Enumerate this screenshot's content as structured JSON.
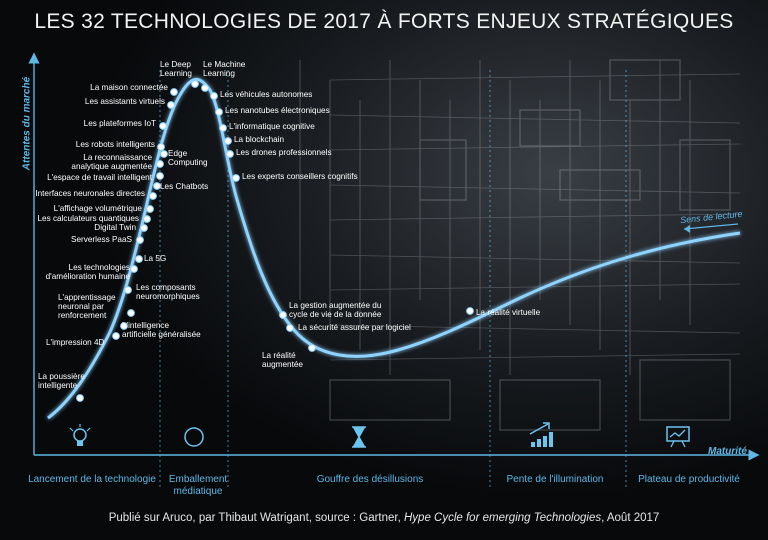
{
  "title": "LES 32 TECHNOLOGIES DE 2017 À FORTS ENJEUX STRATÉGIQUES",
  "axes": {
    "y_label": "Attentes du marché",
    "x_label": "Maturité"
  },
  "reading_direction": "Sens de lecture",
  "phases": [
    {
      "label": "Lancement de la technologie",
      "icon": "lightbulb-icon"
    },
    {
      "label": "Emballement médiatique",
      "icon": "compass-icon"
    },
    {
      "label": "Gouffre des désillusions",
      "icon": "hourglass-icon"
    },
    {
      "label": "Pente de l'illumination",
      "icon": "rising-bars-icon"
    },
    {
      "label": "Plateau de productivité",
      "icon": "presentation-board-icon"
    }
  ],
  "technologies": [
    "La poussière intelligente",
    "L'impression 4D",
    "L'intelligence artificielle généralisée",
    "L'apprentissage neuronal par renforcement",
    "Les composants neuromorphiques",
    "Les technologies d'amélioration humaine",
    "La 5G",
    "Serverless PaaS",
    "Digital Twin",
    "Les calculateurs quantiques",
    "L'affichage volumétrique",
    "Interfaces neuronales directes",
    "Les Chatbots",
    "L'espace de travail intelligent",
    "La reconnaissance analytique augmentée",
    "Edge Computing",
    "Les robots intelligents",
    "Les plateformes IoT",
    "Les assistants virtuels",
    "La maison connectée",
    "Le Deep Learning",
    "Le Machine Learning",
    "Les véhicules autonomes",
    "Les nanotubes électroniques",
    "L'informatique cognitive",
    "La blockchain",
    "Les drones professionnels",
    "Les experts conseillers cognitifs",
    "La gestion augmentée du cycle de vie de la donnée",
    "La sécurité assurée par logiciel",
    "La réalité augmentée",
    "La réalité virtuelle"
  ],
  "footer": {
    "prefix": "Publié sur Aruco, par Thibaut Watrigant, source : Gartner, ",
    "report": "Hype Cycle for emerging Technologies",
    "suffix": ", Août 2017"
  },
  "colors": {
    "accent": "#5fb7e6",
    "curve": "#8fd3ff",
    "background": "#0a0c0f"
  }
}
